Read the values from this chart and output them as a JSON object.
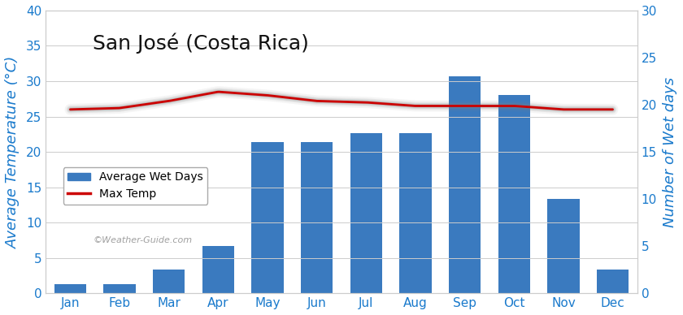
{
  "title": "San José (Costa Rica)",
  "months": [
    "Jan",
    "Feb",
    "Mar",
    "Apr",
    "May",
    "Jun",
    "Jul",
    "Aug",
    "Sep",
    "Oct",
    "Nov",
    "Dec"
  ],
  "wet_days": [
    1,
    1,
    2.5,
    5,
    16,
    16,
    17,
    17,
    23,
    21,
    10,
    2.5
  ],
  "max_temp": [
    26.0,
    26.2,
    27.2,
    28.5,
    28.0,
    27.2,
    27.0,
    26.5,
    26.5,
    26.5,
    26.0,
    26.0
  ],
  "bar_color": "#3a7abf",
  "line_color": "#cc0000",
  "ylabel_left": "Average Temperature (°C)",
  "ylabel_right": "Number of Wet days",
  "ylim_left": [
    0,
    40
  ],
  "ylim_right": [
    0,
    30
  ],
  "yticks_left": [
    0,
    5,
    10,
    15,
    20,
    25,
    30,
    35,
    40
  ],
  "yticks_right": [
    0,
    5,
    10,
    15,
    20,
    25,
    30
  ],
  "background_color": "#ffffff",
  "watermark": "©Weather-Guide.com",
  "title_fontsize": 18,
  "axis_label_fontsize": 13,
  "tick_fontsize": 11,
  "axis_label_color": "#1a7acc",
  "title_color": "#111111"
}
